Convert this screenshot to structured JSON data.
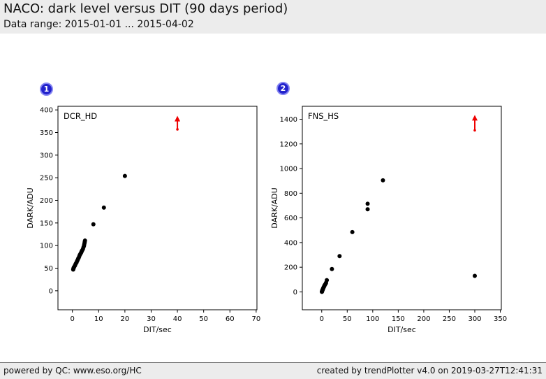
{
  "header": {
    "title": "NACO: dark level versus DIT (90 days period)",
    "subtitle": "Data range: 2015-01-01 ... 2015-04-02"
  },
  "footer": {
    "left": "powered by QC: www.eso.org/HC",
    "right": "created by trendPlotter v4.0 on 2019-03-27T12:41:31"
  },
  "colors": {
    "header_bg": "#ececec",
    "footer_bg": "#ececec",
    "badge_bg": "#2222cc",
    "badge_ring": "#8585f2",
    "point": "#000000",
    "arrow": "#ee0000",
    "axis": "#000000"
  },
  "chart_data": [
    {
      "type": "scatter",
      "badge": "1",
      "label": "DCR_HD",
      "xlabel": "DIT/sec",
      "ylabel": "DARK/ADU",
      "xlim": [
        -5.5,
        70.3
      ],
      "ylim": [
        -42,
        408
      ],
      "xticks": [
        0,
        10,
        20,
        30,
        40,
        50,
        60,
        70
      ],
      "yticks": [
        0,
        50,
        100,
        150,
        200,
        250,
        300,
        350,
        400
      ],
      "grid": false,
      "points": [
        [
          0.3,
          47
        ],
        [
          0.35,
          48
        ],
        [
          0.45,
          50
        ],
        [
          0.5,
          51
        ],
        [
          0.6,
          52
        ],
        [
          0.8,
          54
        ],
        [
          1.0,
          56
        ],
        [
          1.2,
          59
        ],
        [
          1.4,
          61
        ],
        [
          1.6,
          63
        ],
        [
          1.8,
          66
        ],
        [
          2.0,
          68
        ],
        [
          2.2,
          71
        ],
        [
          2.4,
          73
        ],
        [
          2.6,
          76
        ],
        [
          2.8,
          79
        ],
        [
          3.0,
          81
        ],
        [
          3.2,
          83
        ],
        [
          3.4,
          85
        ],
        [
          3.5,
          87
        ],
        [
          3.7,
          89
        ],
        [
          4.0,
          92
        ],
        [
          4.2,
          96
        ],
        [
          4.4,
          99
        ],
        [
          4.5,
          102
        ],
        [
          4.6,
          105
        ],
        [
          4.7,
          108
        ],
        [
          4.8,
          111
        ],
        [
          8,
          147
        ],
        [
          12,
          184
        ],
        [
          20,
          254
        ]
      ],
      "out_of_range_arrow": {
        "x": 40,
        "y_from": 357,
        "y_to": 387
      }
    },
    {
      "type": "scatter",
      "badge": "2",
      "label": "FNS_HS",
      "xlabel": "DIT/sec",
      "ylabel": "DARK/ADU",
      "xlim": [
        -38,
        352
      ],
      "ylim": [
        -145,
        1505
      ],
      "xticks": [
        0,
        50,
        100,
        150,
        200,
        250,
        300,
        350
      ],
      "yticks": [
        0,
        200,
        400,
        600,
        800,
        1000,
        1200,
        1400
      ],
      "grid": false,
      "points": [
        [
          0.35,
          0
        ],
        [
          0.4,
          2
        ],
        [
          0.5,
          4
        ],
        [
          0.8,
          7
        ],
        [
          1.0,
          10
        ],
        [
          1.3,
          13
        ],
        [
          1.6,
          16
        ],
        [
          2.0,
          19
        ],
        [
          2.3,
          22
        ],
        [
          2.6,
          26
        ],
        [
          3.0,
          30
        ],
        [
          3.4,
          34
        ],
        [
          4.0,
          38
        ],
        [
          4.5,
          43
        ],
        [
          5.0,
          47
        ],
        [
          5.5,
          52
        ],
        [
          6.0,
          56
        ],
        [
          7,
          62
        ],
        [
          8,
          68
        ],
        [
          8.5,
          74
        ],
        [
          10,
          95
        ],
        [
          20,
          185
        ],
        [
          35,
          290
        ],
        [
          60,
          485
        ],
        [
          90,
          670
        ],
        [
          90,
          715
        ],
        [
          120,
          905
        ],
        [
          300,
          130
        ]
      ],
      "out_of_range_arrow": {
        "x": 300,
        "y_from": 1310,
        "y_to": 1435
      }
    }
  ]
}
